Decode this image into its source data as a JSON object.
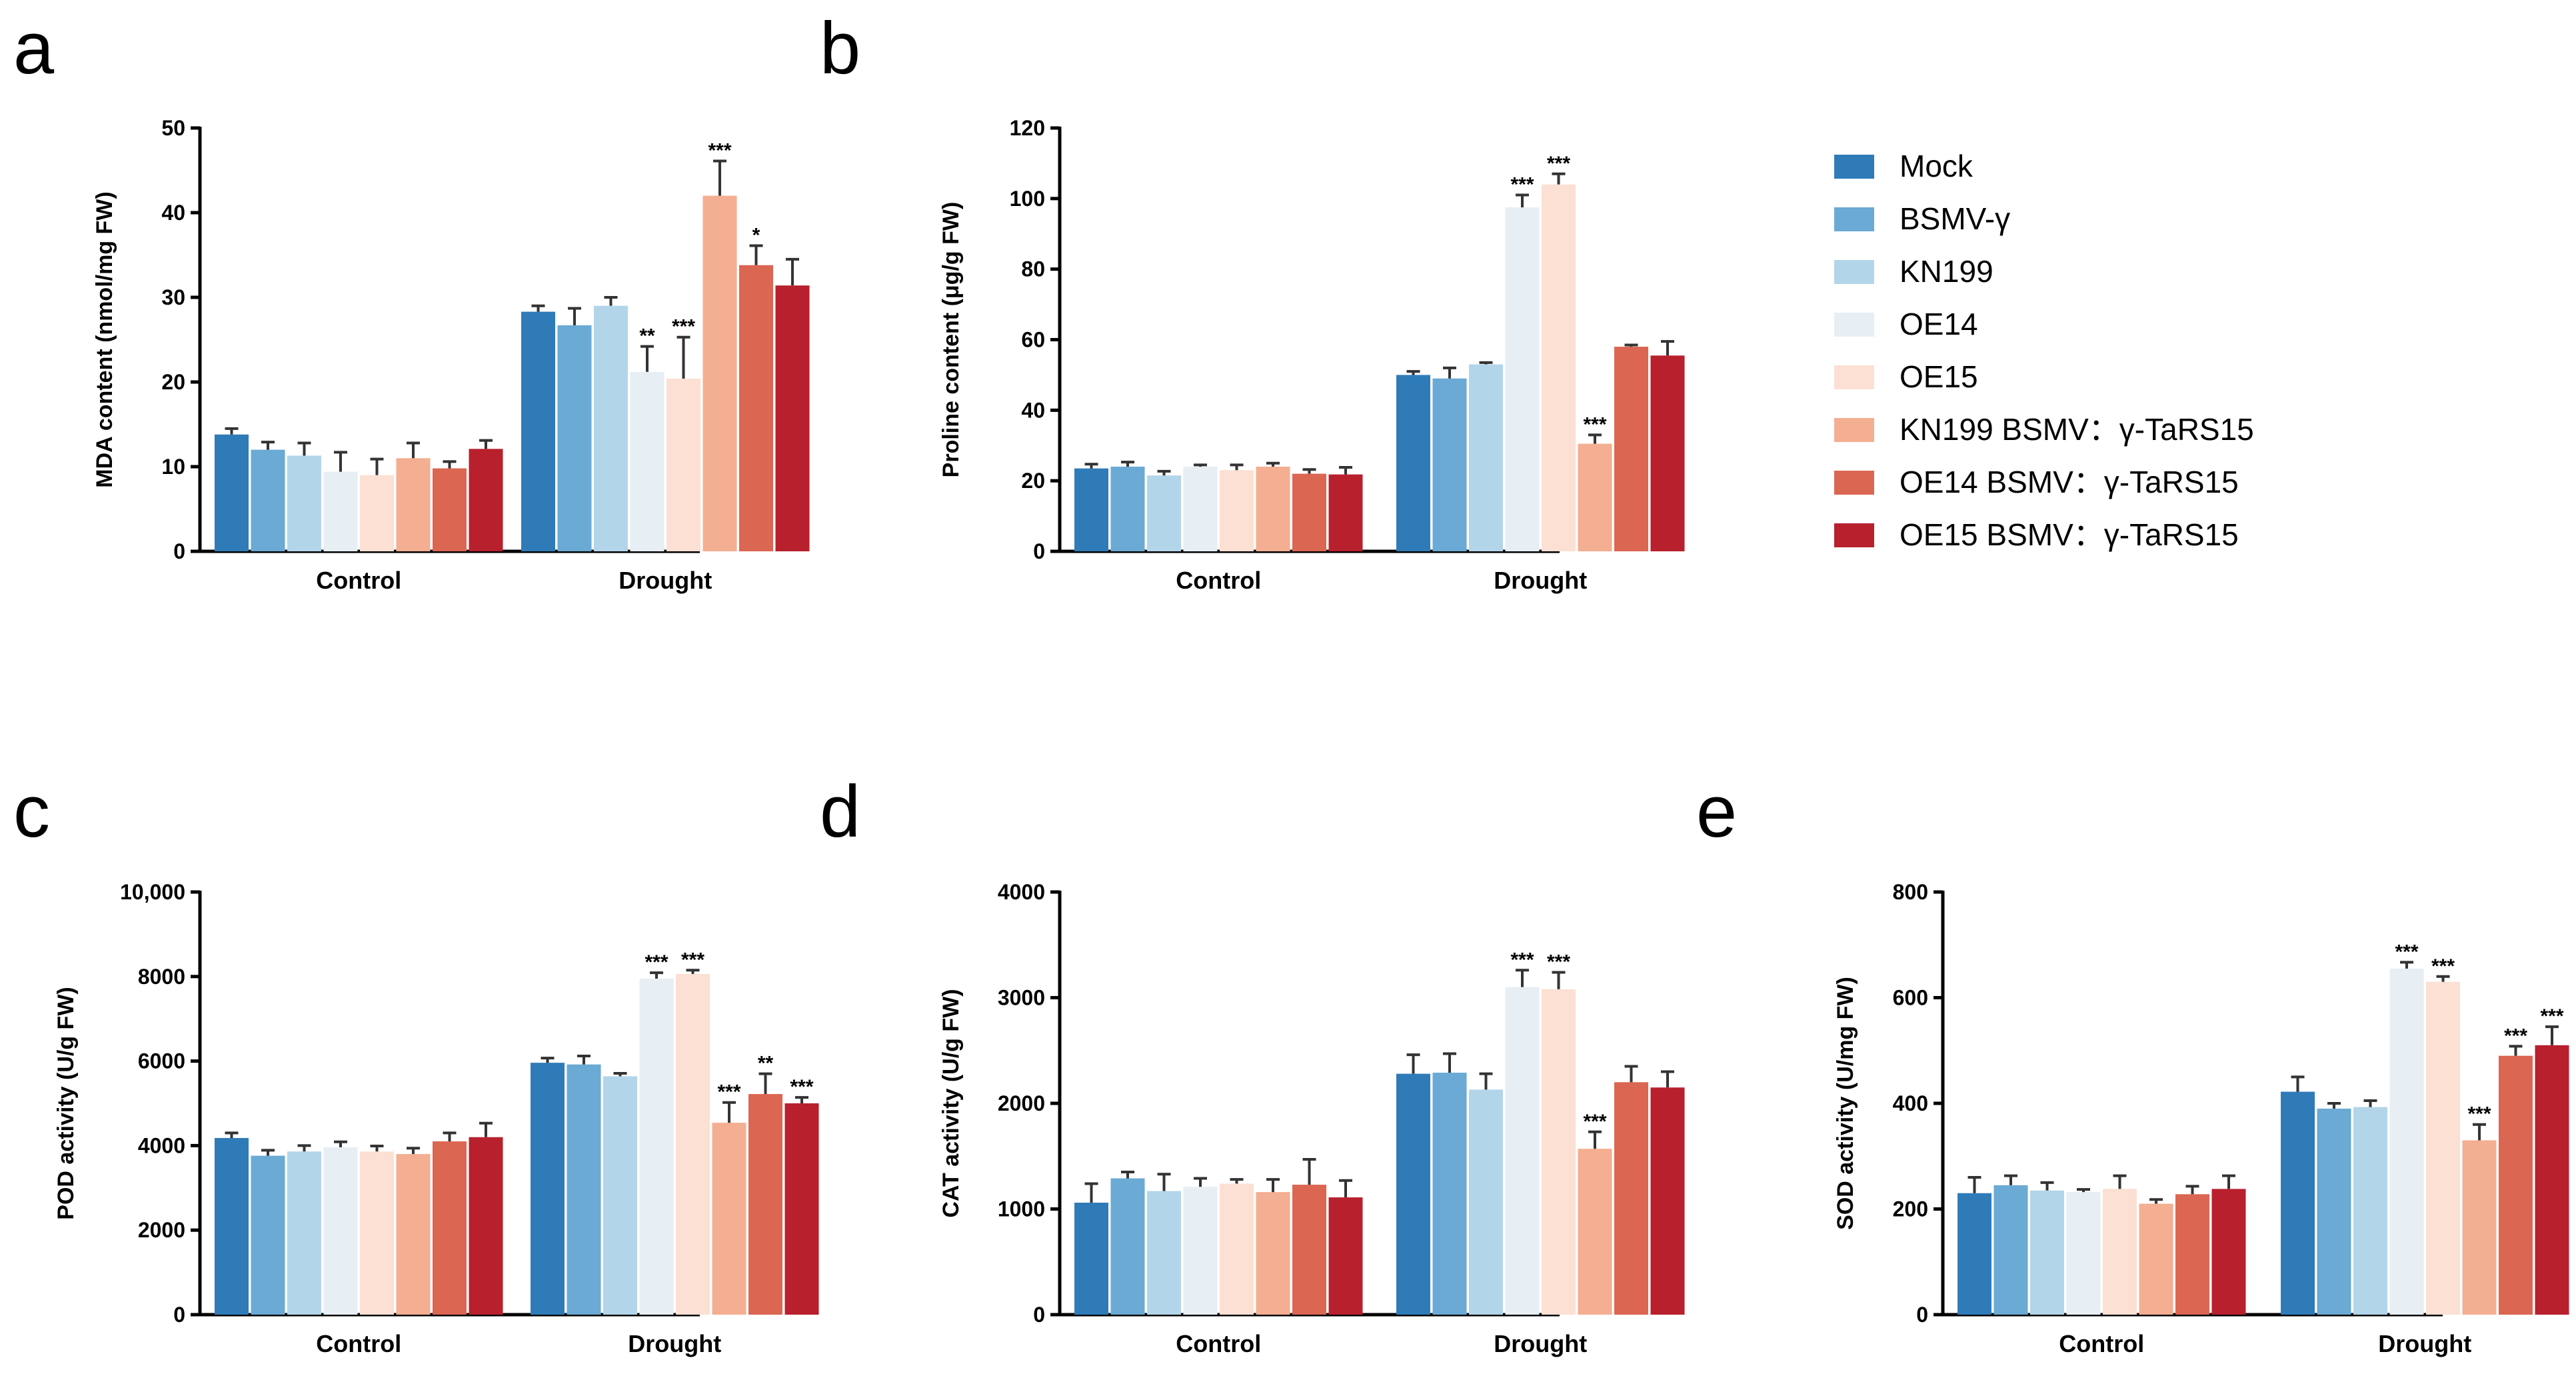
{
  "figure": {
    "colors": {
      "Mock": "#2f7bb8",
      "BSMV-γ": "#6aaad4",
      "KN199": "#b3d5ea",
      "OE14": "#e7eef4",
      "OE15": "#fbe0d3",
      "KN199 BSMV：γ-TaRS15": "#f4ae91",
      "OE14 BSMV：γ-TaRS15": "#db6652",
      "OE15 BSMV：γ-TaRS15": "#b8202e"
    }
  },
  "legend": {
    "entries": [
      "Mock",
      "BSMV-γ",
      "KN199",
      "OE14",
      "OE15",
      "KN199 BSMV：γ-TaRS15",
      "OE14 BSMV：γ-TaRS15",
      "OE15 BSMV：γ-TaRS15"
    ]
  },
  "chart_data": [
    {
      "panel": "a",
      "type": "bar",
      "ylabel": "MDA content (nmol/mg FW)",
      "ylim": [
        0,
        50
      ],
      "yticks": [
        0,
        10,
        20,
        30,
        40,
        50
      ],
      "ytick_labels": [
        "0",
        "10",
        "20",
        "30",
        "40",
        "50"
      ],
      "categories": [
        "Control",
        "Drought"
      ],
      "series": [
        {
          "name": "Mock",
          "values": [
            13.8,
            28.3
          ],
          "errors": [
            0.7,
            0.7
          ],
          "sig": [
            "",
            ""
          ]
        },
        {
          "name": "BSMV-γ",
          "values": [
            12.0,
            26.7
          ],
          "errors": [
            0.9,
            2.0
          ],
          "sig": [
            "",
            ""
          ]
        },
        {
          "name": "KN199",
          "values": [
            11.3,
            29.0
          ],
          "errors": [
            1.5,
            1.0
          ],
          "sig": [
            "",
            ""
          ]
        },
        {
          "name": "OE14",
          "values": [
            9.4,
            21.2
          ],
          "errors": [
            2.3,
            3.0
          ],
          "sig": [
            "",
            "**"
          ]
        },
        {
          "name": "OE15",
          "values": [
            9.0,
            20.4
          ],
          "errors": [
            1.9,
            4.9
          ],
          "sig": [
            "",
            "***"
          ]
        },
        {
          "name": "KN199 BSMV：γ-TaRS15",
          "values": [
            11.0,
            42.0
          ],
          "errors": [
            1.8,
            4.1
          ],
          "sig": [
            "",
            "***"
          ]
        },
        {
          "name": "OE14 BSMV：γ-TaRS15",
          "values": [
            9.8,
            33.8
          ],
          "errors": [
            0.8,
            2.3
          ],
          "sig": [
            "",
            "*"
          ]
        },
        {
          "name": "OE15 BSMV：γ-TaRS15",
          "values": [
            12.1,
            31.4
          ],
          "errors": [
            1.0,
            3.1
          ],
          "sig": [
            "",
            ""
          ]
        }
      ]
    },
    {
      "panel": "b",
      "type": "bar",
      "ylabel": "Proline content (μg/g FW)",
      "ylim": [
        0,
        120
      ],
      "yticks": [
        0,
        20,
        40,
        60,
        80,
        100,
        120
      ],
      "ytick_labels": [
        "0",
        "20",
        "40",
        "60",
        "80",
        "100",
        "120"
      ],
      "categories": [
        "Control",
        "Drought"
      ],
      "series": [
        {
          "name": "Mock",
          "values": [
            23.5,
            50.0
          ],
          "errors": [
            1.2,
            1.0
          ],
          "sig": [
            "",
            ""
          ]
        },
        {
          "name": "BSMV-γ",
          "values": [
            24.0,
            49.0
          ],
          "errors": [
            1.3,
            3.0
          ],
          "sig": [
            "",
            ""
          ]
        },
        {
          "name": "KN199",
          "values": [
            21.5,
            53.0
          ],
          "errors": [
            1.2,
            0.5
          ],
          "sig": [
            "",
            ""
          ]
        },
        {
          "name": "OE14",
          "values": [
            24.0,
            97.5
          ],
          "errors": [
            0.5,
            3.5
          ],
          "sig": [
            "",
            "***"
          ]
        },
        {
          "name": "OE15",
          "values": [
            23.0,
            104.0
          ],
          "errors": [
            1.5,
            3.0
          ],
          "sig": [
            "",
            "***"
          ]
        },
        {
          "name": "KN199 BSMV：γ-TaRS15",
          "values": [
            24.0,
            30.5
          ],
          "errors": [
            1.0,
            2.5
          ],
          "sig": [
            "",
            "***"
          ]
        },
        {
          "name": "OE14 BSMV：γ-TaRS15",
          "values": [
            22.0,
            58.0
          ],
          "errors": [
            1.2,
            0.5
          ],
          "sig": [
            "",
            ""
          ]
        },
        {
          "name": "OE15 BSMV：γ-TaRS15",
          "values": [
            21.8,
            55.5
          ],
          "errors": [
            2.0,
            4.0
          ],
          "sig": [
            "",
            ""
          ]
        }
      ]
    },
    {
      "panel": "c",
      "type": "bar",
      "ylabel": "POD activity (U/g FW)",
      "ylim": [
        0,
        10000
      ],
      "yticks": [
        0,
        2000,
        4000,
        6000,
        8000,
        10000
      ],
      "ytick_labels": [
        "0",
        "2000",
        "4000",
        "6000",
        "8000",
        "10,000"
      ],
      "categories": [
        "Control",
        "Drought"
      ],
      "series": [
        {
          "name": "Mock",
          "values": [
            4180,
            5960
          ],
          "errors": [
            120,
            110
          ],
          "sig": [
            "",
            ""
          ]
        },
        {
          "name": "BSMV-γ",
          "values": [
            3760,
            5920
          ],
          "errors": [
            130,
            200
          ],
          "sig": [
            "",
            ""
          ]
        },
        {
          "name": "KN199",
          "values": [
            3860,
            5640
          ],
          "errors": [
            140,
            70
          ],
          "sig": [
            "",
            ""
          ]
        },
        {
          "name": "OE14",
          "values": [
            3960,
            7950
          ],
          "errors": [
            130,
            140
          ],
          "sig": [
            "",
            "***"
          ]
        },
        {
          "name": "OE15",
          "values": [
            3860,
            8060
          ],
          "errors": [
            130,
            90
          ],
          "sig": [
            "",
            "***"
          ]
        },
        {
          "name": "KN199 BSMV：γ-TaRS15",
          "values": [
            3800,
            4540
          ],
          "errors": [
            140,
            480
          ],
          "sig": [
            "",
            "***"
          ]
        },
        {
          "name": "OE14 BSMV：γ-TaRS15",
          "values": [
            4100,
            5220
          ],
          "errors": [
            200,
            480
          ],
          "sig": [
            "",
            "**"
          ]
        },
        {
          "name": "OE15 BSMV：γ-TaRS15",
          "values": [
            4200,
            5000
          ],
          "errors": [
            330,
            140
          ],
          "sig": [
            "",
            "***"
          ]
        }
      ]
    },
    {
      "panel": "d",
      "type": "bar",
      "ylabel": "CAT activity (U/g FW)",
      "ylim": [
        0,
        4000
      ],
      "yticks": [
        0,
        1000,
        2000,
        3000,
        4000
      ],
      "ytick_labels": [
        "0",
        "1000",
        "2000",
        "3000",
        "4000"
      ],
      "categories": [
        "Control",
        "Drought"
      ],
      "series": [
        {
          "name": "Mock",
          "values": [
            1060,
            2280
          ],
          "errors": [
            180,
            180
          ],
          "sig": [
            "",
            ""
          ]
        },
        {
          "name": "BSMV-γ",
          "values": [
            1290,
            2290
          ],
          "errors": [
            60,
            180
          ],
          "sig": [
            "",
            ""
          ]
        },
        {
          "name": "KN199",
          "values": [
            1170,
            2130
          ],
          "errors": [
            160,
            150
          ],
          "sig": [
            "",
            ""
          ]
        },
        {
          "name": "OE14",
          "values": [
            1210,
            3100
          ],
          "errors": [
            80,
            160
          ],
          "sig": [
            "",
            "***"
          ]
        },
        {
          "name": "OE15",
          "values": [
            1240,
            3080
          ],
          "errors": [
            40,
            160
          ],
          "sig": [
            "",
            "***"
          ]
        },
        {
          "name": "KN199 BSMV：γ-TaRS15",
          "values": [
            1160,
            1570
          ],
          "errors": [
            120,
            160
          ],
          "sig": [
            "",
            "***"
          ]
        },
        {
          "name": "OE14 BSMV：γ-TaRS15",
          "values": [
            1230,
            2200
          ],
          "errors": [
            240,
            150
          ],
          "sig": [
            "",
            ""
          ]
        },
        {
          "name": "OE15 BSMV：γ-TaRS15",
          "values": [
            1110,
            2150
          ],
          "errors": [
            160,
            150
          ],
          "sig": [
            "",
            ""
          ]
        }
      ]
    },
    {
      "panel": "e",
      "type": "bar",
      "ylabel": "SOD activity (U/mg FW)",
      "ylim": [
        0,
        800
      ],
      "yticks": [
        0,
        200,
        400,
        600,
        800
      ],
      "ytick_labels": [
        "0",
        "200",
        "400",
        "600",
        "800"
      ],
      "categories": [
        "Control",
        "Drought"
      ],
      "series": [
        {
          "name": "Mock",
          "values": [
            230,
            422
          ],
          "errors": [
            30,
            28
          ],
          "sig": [
            "",
            ""
          ]
        },
        {
          "name": "BSMV-γ",
          "values": [
            245,
            390
          ],
          "errors": [
            18,
            10
          ],
          "sig": [
            "",
            ""
          ]
        },
        {
          "name": "KN199",
          "values": [
            235,
            393
          ],
          "errors": [
            15,
            12
          ],
          "sig": [
            "",
            ""
          ]
        },
        {
          "name": "OE14",
          "values": [
            232,
            655
          ],
          "errors": [
            5,
            12
          ],
          "sig": [
            "",
            "***"
          ]
        },
        {
          "name": "OE15",
          "values": [
            238,
            630
          ],
          "errors": [
            25,
            10
          ],
          "sig": [
            "",
            "***"
          ]
        },
        {
          "name": "KN199 BSMV：γ-TaRS15",
          "values": [
            210,
            330
          ],
          "errors": [
            8,
            30
          ],
          "sig": [
            "",
            "***"
          ]
        },
        {
          "name": "OE14 BSMV：γ-TaRS15",
          "values": [
            228,
            490
          ],
          "errors": [
            15,
            18
          ],
          "sig": [
            "",
            "***"
          ]
        },
        {
          "name": "OE15 BSMV：γ-TaRS15",
          "values": [
            238,
            510
          ],
          "errors": [
            25,
            35
          ],
          "sig": [
            "",
            "***"
          ]
        }
      ]
    }
  ]
}
